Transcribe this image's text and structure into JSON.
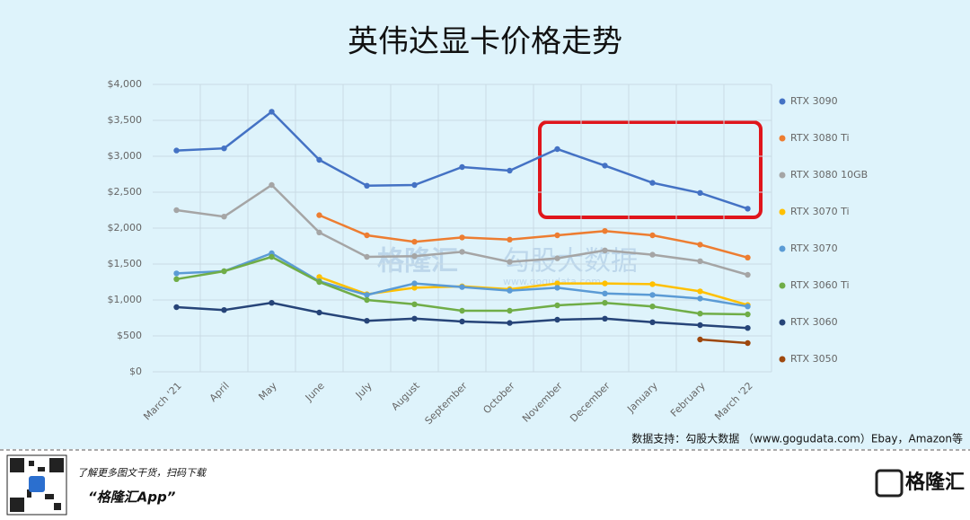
{
  "title": "英伟达显卡价格走势",
  "chart_data": {
    "type": "line",
    "categories": [
      "March '21",
      "April",
      "May",
      "June",
      "July",
      "August",
      "September",
      "October",
      "November",
      "December",
      "January",
      "February",
      "March '22"
    ],
    "series": [
      {
        "name": "RTX 3090",
        "color": "#4472c4",
        "values": [
          3080,
          3110,
          3620,
          2950,
          2590,
          2600,
          2850,
          2800,
          3100,
          2870,
          2630,
          2490,
          2270
        ]
      },
      {
        "name": "RTX 3080 Ti",
        "color": "#ed7d31",
        "values": [
          null,
          null,
          null,
          2180,
          1900,
          1810,
          1870,
          1840,
          1900,
          1960,
          1900,
          1770,
          1590
        ]
      },
      {
        "name": "RTX 3080 10GB",
        "color": "#a5a5a5",
        "values": [
          2250,
          2160,
          2600,
          1940,
          1600,
          1610,
          1670,
          1530,
          1580,
          1690,
          1630,
          1540,
          1350
        ]
      },
      {
        "name": "RTX 3070 Ti",
        "color": "#ffc000",
        "values": [
          null,
          null,
          null,
          1320,
          1080,
          1170,
          1190,
          1150,
          1230,
          1230,
          1220,
          1120,
          930
        ]
      },
      {
        "name": "RTX 3070",
        "color": "#5b9bd5",
        "values": [
          1370,
          1400,
          1650,
          1260,
          1070,
          1230,
          1180,
          1130,
          1170,
          1090,
          1070,
          1020,
          910
        ]
      },
      {
        "name": "RTX 3060 Ti",
        "color": "#70ad47",
        "values": [
          1290,
          1400,
          1600,
          1250,
          1000,
          940,
          850,
          850,
          925,
          960,
          910,
          810,
          800
        ]
      },
      {
        "name": "RTX 3060",
        "color": "#264478",
        "values": [
          900,
          860,
          960,
          825,
          710,
          740,
          700,
          680,
          725,
          740,
          690,
          650,
          610
        ]
      },
      {
        "name": "RTX 3050",
        "color": "#9e480e",
        "values": [
          null,
          null,
          null,
          null,
          null,
          null,
          null,
          null,
          null,
          null,
          null,
          450,
          400
        ]
      }
    ],
    "ylim": [
      0,
      4000
    ],
    "yticks": [
      {
        "value": 0,
        "label": "$0"
      },
      {
        "value": 500,
        "label": "$500"
      },
      {
        "value": 1000,
        "label": "$1,000"
      },
      {
        "value": 1500,
        "label": "$1,500"
      },
      {
        "value": 2000,
        "label": "$2,000"
      },
      {
        "value": 2500,
        "label": "$2,500"
      },
      {
        "value": 3000,
        "label": "$3,000"
      },
      {
        "value": 3500,
        "label": "$3,500"
      },
      {
        "value": 4000,
        "label": "$4,000"
      }
    ],
    "grid": true,
    "legend": "right"
  },
  "watermark": {
    "brand": "格隆汇",
    "sub": "勾股大数据",
    "url": "www.gogudata.com"
  },
  "source": "数据支持：勾股大数据 （www.gogudata.com）Ebay，Amazon等",
  "footer": {
    "line1": "了解更多图文干货，扫码下载",
    "line2": "“格隆汇App”",
    "logo": "格隆汇"
  }
}
